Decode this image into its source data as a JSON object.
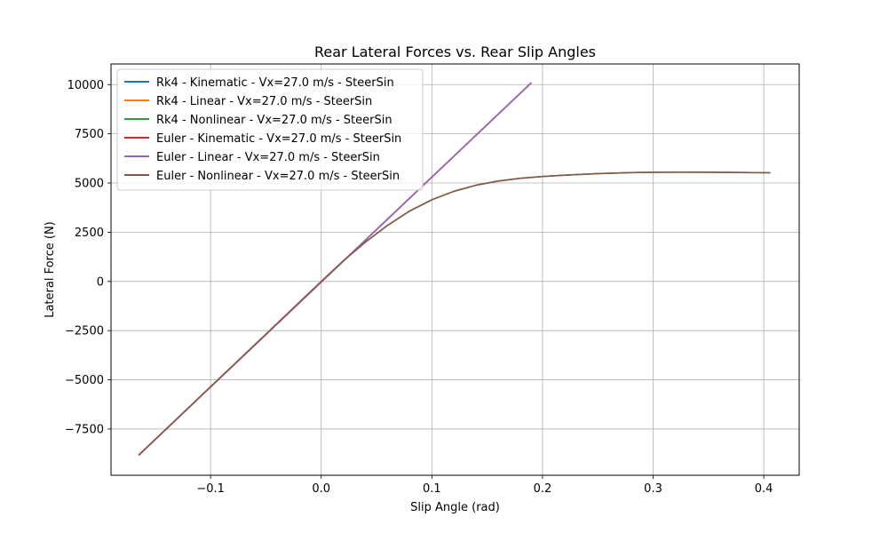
{
  "chart_data": {
    "type": "line",
    "title": "Rear Lateral Forces vs. Rear Slip Angles",
    "xlabel": "Slip Angle (rad)",
    "ylabel": "Lateral Force (N)",
    "xlim": [
      -0.19,
      0.432
    ],
    "ylim": [
      -9850,
      11050
    ],
    "xticks": [
      -0.1,
      0.0,
      0.1,
      0.2,
      0.3,
      0.4
    ],
    "xtick_labels": [
      "−0.1",
      "0.0",
      "0.1",
      "0.2",
      "0.3",
      "0.4"
    ],
    "yticks": [
      -7500,
      -5000,
      -2500,
      0,
      2500,
      5000,
      7500,
      10000
    ],
    "ytick_labels": [
      "−7500",
      "−5000",
      "−2500",
      "0",
      "2500",
      "5000",
      "7500",
      "10000"
    ],
    "grid": true,
    "legend_position": "top-left",
    "series": [
      {
        "name": "Rk4 - Kinematic - Vx=27.0 m/s - SteerSin",
        "color": "#1f77b4",
        "x": [
          -0.165,
          0.19
        ],
        "y": [
          -8830,
          10100
        ]
      },
      {
        "name": "Rk4 - Linear - Vx=27.0 m/s - SteerSin",
        "color": "#ff7f0e",
        "x": [
          -0.165,
          0.19
        ],
        "y": [
          -8830,
          10100
        ]
      },
      {
        "name": "Rk4 - Nonlinear - Vx=27.0 m/s - SteerSin",
        "color": "#2ca02c",
        "x": [
          -0.165,
          -0.1,
          -0.05,
          0.0,
          0.02,
          0.04,
          0.06,
          0.08,
          0.1,
          0.12,
          0.14,
          0.16,
          0.18,
          0.2,
          0.22,
          0.25,
          0.28,
          0.3,
          0.33,
          0.36,
          0.39,
          0.406
        ],
        "y": [
          -8830,
          -5350,
          -2680,
          0,
          1050,
          2000,
          2850,
          3580,
          4150,
          4580,
          4890,
          5100,
          5240,
          5330,
          5400,
          5480,
          5530,
          5545,
          5550,
          5545,
          5530,
          5520
        ]
      },
      {
        "name": "Euler - Kinematic - Vx=27.0 m/s - SteerSin",
        "color": "#d62728",
        "x": [
          -0.165,
          0.19
        ],
        "y": [
          -8830,
          10100
        ]
      },
      {
        "name": "Euler - Linear - Vx=27.0 m/s - SteerSin",
        "color": "#9467bd",
        "x": [
          -0.165,
          0.19
        ],
        "y": [
          -8830,
          10100
        ]
      },
      {
        "name": "Euler - Nonlinear - Vx=27.0 m/s - SteerSin",
        "color": "#8c564b",
        "x": [
          -0.165,
          -0.1,
          -0.05,
          0.0,
          0.02,
          0.04,
          0.06,
          0.08,
          0.1,
          0.12,
          0.14,
          0.16,
          0.18,
          0.2,
          0.22,
          0.25,
          0.28,
          0.3,
          0.33,
          0.36,
          0.39,
          0.406
        ],
        "y": [
          -8830,
          -5350,
          -2680,
          0,
          1050,
          2000,
          2850,
          3580,
          4150,
          4580,
          4890,
          5100,
          5240,
          5330,
          5400,
          5480,
          5530,
          5545,
          5550,
          5545,
          5530,
          5520
        ]
      }
    ]
  }
}
